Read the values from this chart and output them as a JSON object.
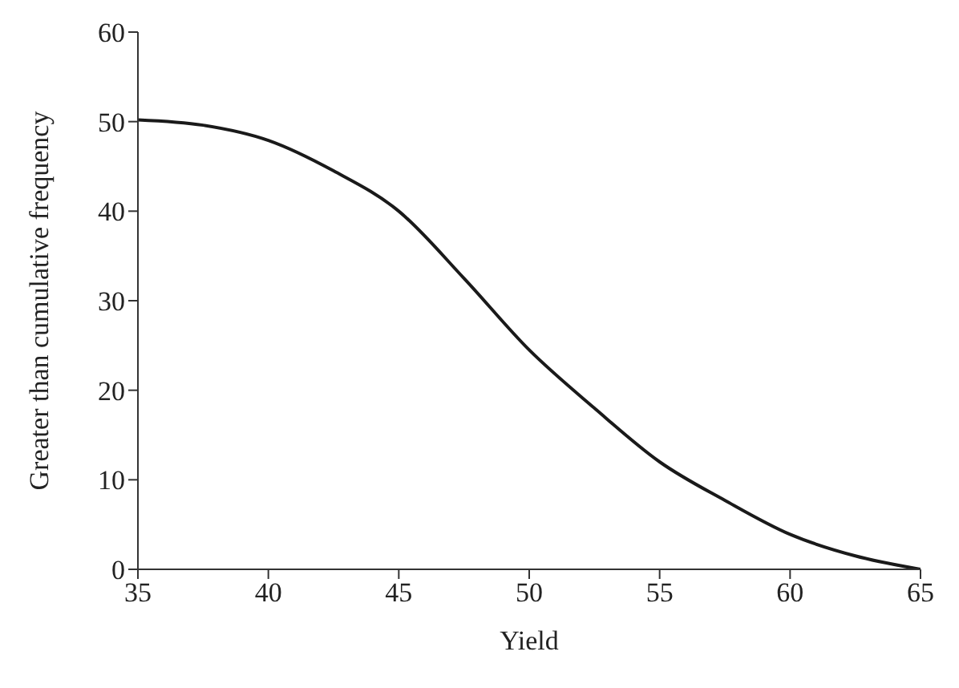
{
  "chart_data": {
    "type": "line",
    "xlabel": "Yield",
    "ylabel": "Greater than cumulative frequency",
    "x": [
      35,
      37.5,
      40,
      42.5,
      45,
      47.5,
      50,
      52.5,
      55,
      57.5,
      60,
      62.5,
      65
    ],
    "series": [
      {
        "color": "#1a1a1a",
        "values": [
          50.2,
          49.6,
          47.9,
          44.5,
          40,
          32.5,
          24.5,
          18,
          12,
          7.7,
          3.9,
          1.5,
          0
        ]
      }
    ],
    "xlim": [
      35,
      65
    ],
    "xticks": [
      35,
      40,
      45,
      50,
      55,
      60,
      65
    ],
    "ylim": [
      0,
      60
    ],
    "yticks": [
      0,
      10,
      20,
      30,
      40,
      50,
      60
    ],
    "grid": false,
    "legend": false,
    "marker": "none",
    "line_style": "solid"
  }
}
